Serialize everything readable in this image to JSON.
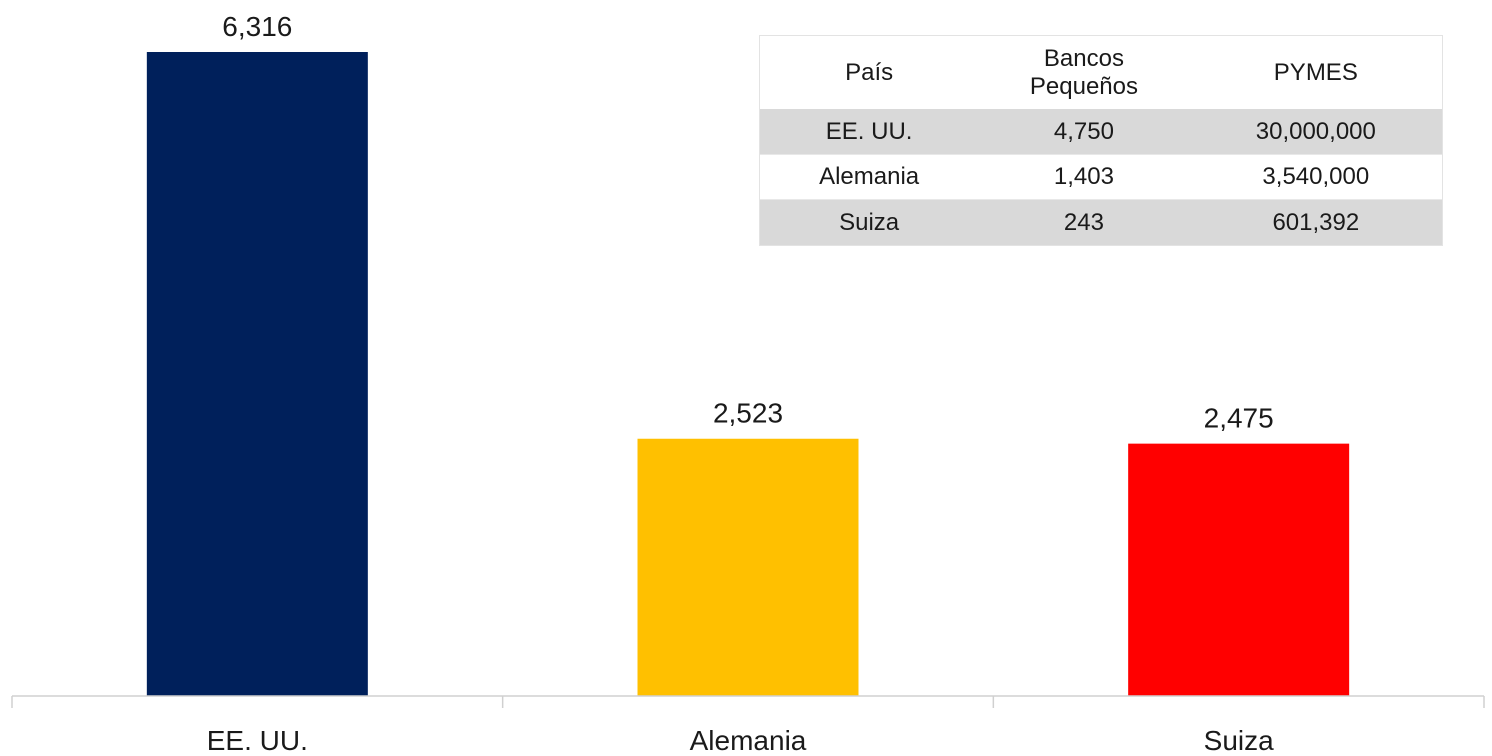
{
  "chart_data": {
    "type": "bar",
    "categories": [
      "EE. UU.",
      "Alemania",
      "Suiza"
    ],
    "values": [
      6316,
      2523,
      2475
    ],
    "value_labels": [
      "6,316",
      "2,523",
      "2,475"
    ],
    "colors": [
      "#00205b",
      "#ffc000",
      "#ff0000"
    ],
    "title": "",
    "xlabel": "",
    "ylabel": "",
    "ylim": [
      0,
      6316
    ],
    "grid": false,
    "legend": "none"
  },
  "table": {
    "headers": {
      "pais": "País",
      "bancos_line1": "Bancos",
      "bancos_line2": "Pequeños",
      "pymes": "PYMES"
    },
    "rows": [
      {
        "pais": "EE. UU.",
        "bancos": "4,750",
        "pymes": "30,000,000"
      },
      {
        "pais": "Alemania",
        "bancos": "1,403",
        "pymes": "3,540,000"
      },
      {
        "pais": "Suiza",
        "bancos": "243",
        "pymes": "601,392"
      }
    ]
  }
}
